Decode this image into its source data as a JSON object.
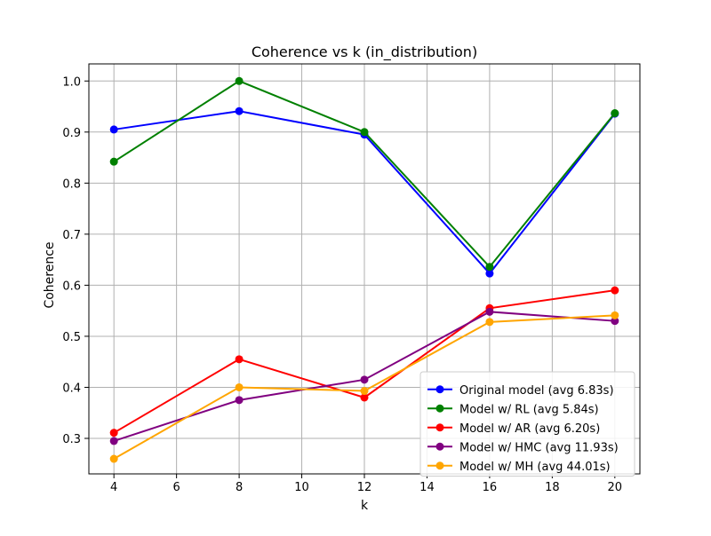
{
  "chart_data": {
    "type": "line",
    "title": "Coherence vs k (in_distribution)",
    "xlabel": "k",
    "ylabel": "Coherence",
    "x": [
      4,
      8,
      12,
      16,
      20
    ],
    "xlim": [
      3.2,
      20.8
    ],
    "ylim": [
      0.2305,
      1.0335
    ],
    "xticks": [
      4,
      6,
      8,
      10,
      12,
      14,
      16,
      18,
      20
    ],
    "xtick_labels": [
      "4",
      "6",
      "8",
      "10",
      "12",
      "14",
      "16",
      "18",
      "20"
    ],
    "yticks": [
      0.3,
      0.4,
      0.5,
      0.6,
      0.7,
      0.8,
      0.9,
      1.0
    ],
    "ytick_labels": [
      "0.3",
      "0.4",
      "0.5",
      "0.6",
      "0.7",
      "0.8",
      "0.9",
      "1.0"
    ],
    "grid": true,
    "legend_position": "lower-right",
    "series": [
      {
        "name": "Original model (avg 6.83s)",
        "color": "#0000ff",
        "values": [
          0.905,
          0.941,
          0.895,
          0.623,
          0.936
        ]
      },
      {
        "name": "Model w/ RL (avg 5.84s)",
        "color": "#008000",
        "values": [
          0.842,
          1.0,
          0.9,
          0.636,
          0.937
        ]
      },
      {
        "name": "Model w/ AR (avg 6.20s)",
        "color": "#ff0000",
        "values": [
          0.311,
          0.455,
          0.38,
          0.555,
          0.59
        ]
      },
      {
        "name": "Model w/ HMC (avg 11.93s)",
        "color": "#800080",
        "values": [
          0.295,
          0.375,
          0.415,
          0.548,
          0.53
        ]
      },
      {
        "name": "Model w/ MH (avg 44.01s)",
        "color": "#ffa500",
        "values": [
          0.26,
          0.4,
          0.393,
          0.528,
          0.541
        ]
      }
    ]
  }
}
